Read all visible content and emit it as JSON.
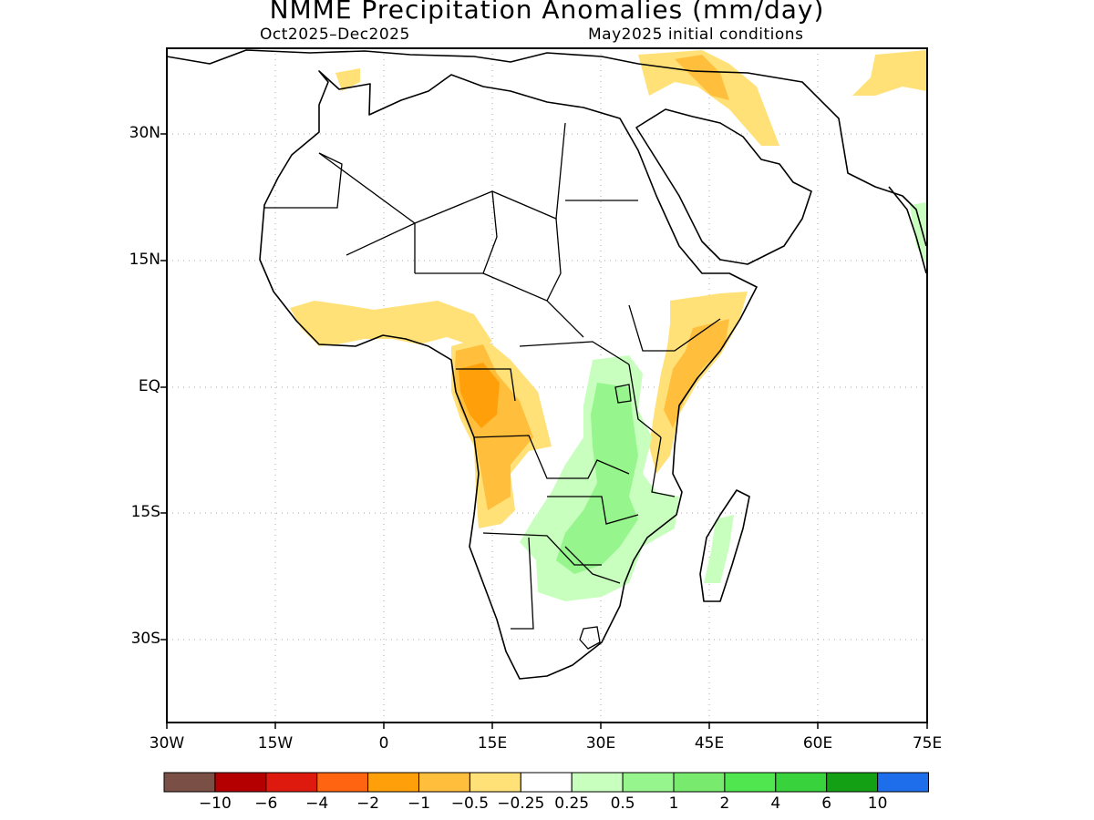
{
  "title": "NMME Precipitation Anomalies (mm/day)",
  "period": "Oct2025–Dec2025",
  "initial_conditions": "May2025 initial conditions",
  "lat_labels": [
    "30N",
    "15N",
    "EQ",
    "15S",
    "30S"
  ],
  "lon_labels": [
    "30W",
    "15W",
    "0",
    "15E",
    "30E",
    "45E",
    "60E",
    "75E"
  ],
  "colorbar": {
    "colors": [
      "#7a4f46",
      "#b40000",
      "#de1a0e",
      "#ff6410",
      "#ffa00a",
      "#ffbe3c",
      "#ffe178",
      "#ffffff",
      "#c8ffbe",
      "#96f58c",
      "#78ea6e",
      "#50e650",
      "#37d23c",
      "#14a014",
      "#1e6eeb"
    ],
    "labels": [
      "−10",
      "−6",
      "−4",
      "−2",
      "−1",
      "−0.5",
      "−0.25",
      "0.25",
      "0.5",
      "1",
      "2",
      "4",
      "6",
      "10"
    ]
  },
  "map_extent": {
    "lon": [
      -30,
      75
    ],
    "lat": [
      -40,
      40
    ]
  }
}
